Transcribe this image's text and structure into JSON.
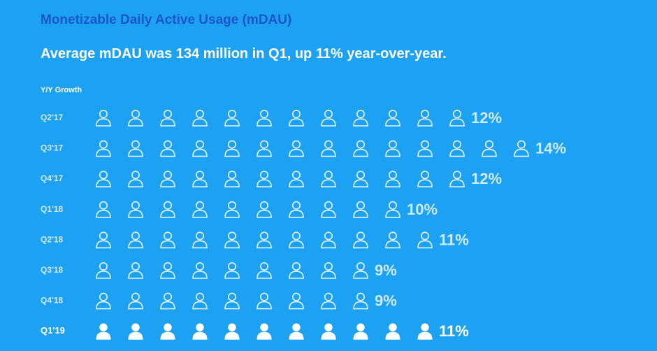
{
  "title": "Monetizable Daily Active Usage (mDAU)",
  "subtitle": "Average mDAU was 134 million in Q1, up 11% year-over-year.",
  "chart_data": {
    "type": "bar",
    "orientation": "horizontal",
    "ylabel": "Y/Y Growth",
    "categories": [
      "Q2'17",
      "Q3'17",
      "Q4'17",
      "Q1'18",
      "Q2'18",
      "Q3'18",
      "Q4'18",
      "Q1'19"
    ],
    "values": [
      12,
      14,
      12,
      10,
      11,
      9,
      9,
      11
    ],
    "value_labels": [
      "12%",
      "14%",
      "12%",
      "10%",
      "11%",
      "9%",
      "9%",
      "11%"
    ],
    "highlighted_category": "Q1'19",
    "unit": "%"
  },
  "colors": {
    "background": "#1da1f2",
    "title": "#1856c9",
    "text": "#ffffff",
    "muted": "#cfeafd"
  }
}
